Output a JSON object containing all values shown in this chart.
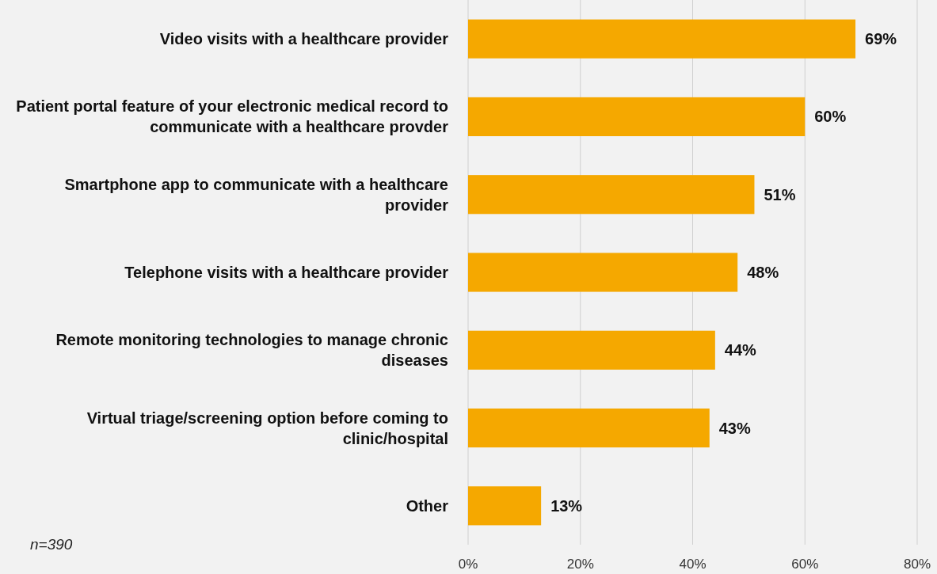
{
  "chart_data": {
    "type": "bar",
    "orientation": "horizontal",
    "categories": [
      "Video visits with a healthcare provider",
      "Patient portal feature of your electronic medical record to communicate with a healthcare provder",
      "Smartphone app to communicate with a healthcare provider",
      "Telephone visits with a healthcare provider",
      "Remote monitoring technologies to manage chronic diseases",
      "Virtual triage/screening option before coming to clinic/hospital",
      "Other"
    ],
    "values": [
      69,
      60,
      51,
      48,
      44,
      43,
      13
    ],
    "value_labels": [
      "69%",
      "60%",
      "51%",
      "48%",
      "44%",
      "43%",
      "13%"
    ],
    "color": "#f5a800",
    "xlim": [
      0,
      80
    ],
    "xticks": [
      {
        "value": 0,
        "label": "0%"
      },
      {
        "value": 20,
        "label": "20%"
      },
      {
        "value": 40,
        "label": "40%"
      },
      {
        "value": 60,
        "label": "60%"
      },
      {
        "value": 80,
        "label": "80%"
      }
    ],
    "grid": "x",
    "annotations": [
      "n=390"
    ]
  }
}
